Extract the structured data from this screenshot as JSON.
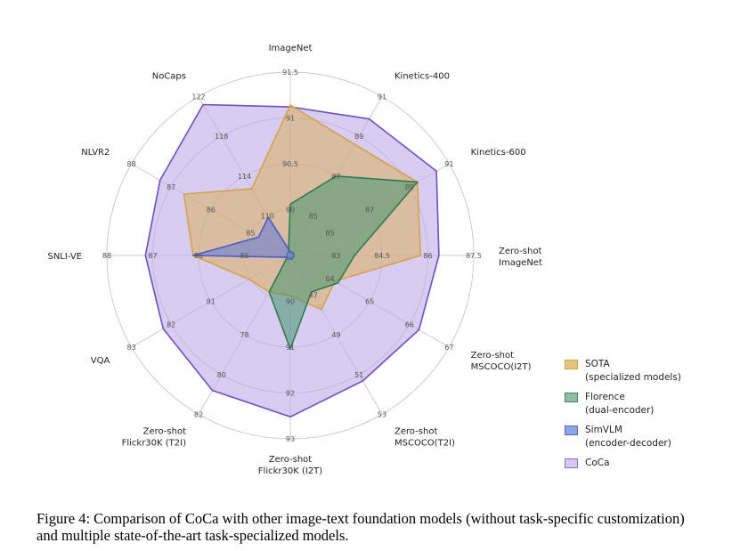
{
  "chart_data": {
    "type": "radar",
    "axes": [
      {
        "label": "ImageNet",
        "ticks": [
          "90",
          "90.5",
          "91",
          "91.5"
        ]
      },
      {
        "label": "Kinetics-400",
        "ticks": [
          "85",
          "87",
          "89",
          "91"
        ]
      },
      {
        "label": "Kinetics-600",
        "ticks": [
          "85",
          "87",
          "89",
          "91"
        ]
      },
      {
        "label": "Zero-shot ImageNet",
        "ticks": [
          "83",
          "84.5",
          "86",
          "87.5"
        ]
      },
      {
        "label": "Zero-shot MSCOCO(I2T)",
        "ticks": [
          "64",
          "65",
          "66",
          "67"
        ]
      },
      {
        "label": "Zero-shot MSCOCO(T2I)",
        "ticks": [
          "47",
          "49",
          "51",
          "53"
        ]
      },
      {
        "label": "Zero-shot Flickr30K (I2T)",
        "ticks": [
          "90",
          "91",
          "92",
          "93"
        ]
      },
      {
        "label": "Zero-shot Flickr30K (T2I)",
        "ticks": [
          "78",
          "80",
          "82"
        ]
      },
      {
        "label": "VQA",
        "ticks": [
          "81",
          "82",
          "83"
        ]
      },
      {
        "label": "SNLI-VE",
        "ticks": [
          "85",
          "86",
          "87",
          "88"
        ]
      },
      {
        "label": "NLVR2",
        "ticks": [
          "85",
          "86",
          "87",
          "88"
        ]
      },
      {
        "label": "NoCaps",
        "ticks": [
          "110",
          "114",
          "118",
          "122"
        ]
      }
    ],
    "series": [
      {
        "name": "SOTA (specialized models)",
        "values": [
          0.82,
          0.7,
          0.8,
          0.71,
          0.28,
          0.34,
          0.22,
          0.23,
          0.26,
          0.53,
          0.67,
          0.42
        ]
      },
      {
        "name": "Florence (dual-encoder)",
        "values": [
          0.28,
          0.5,
          0.8,
          0.35,
          0.3,
          0.23,
          0.51,
          0.23,
          0.02,
          0.02,
          0.02,
          0.02
        ]
      },
      {
        "name": "SimVLM (encoder-decoder)",
        "values": [
          0.02,
          0.02,
          0.02,
          0.02,
          0.02,
          0.02,
          0.02,
          0.02,
          0.02,
          0.53,
          0.2,
          0.24
        ]
      },
      {
        "name": "CoCa",
        "values": [
          0.81,
          0.86,
          0.92,
          0.81,
          0.81,
          0.79,
          0.88,
          0.85,
          0.8,
          0.79,
          0.82,
          0.95
        ]
      }
    ],
    "legend_position": "right"
  },
  "legend": [
    {
      "label": "SOTA\n(specialized models)",
      "color": "#E4C480",
      "stroke": "#D4A24A"
    },
    {
      "label": "Florence\n(dual-encoder)",
      "color": "#8FBFA3",
      "stroke": "#3E8A5E"
    },
    {
      "label": "SimVLM\n(encoder-decoder)",
      "color": "#8EA3E0",
      "stroke": "#5566CC"
    },
    {
      "label": "CoCa",
      "color": "#D6C9EF",
      "stroke": "#8B70CC"
    }
  ],
  "colors": {
    "sota_fill": "rgba(221,174,96,0.55)",
    "sota_stroke": "#D4A24A",
    "florence_fill": "rgba(70,150,110,0.55)",
    "florence_stroke": "#2F7A52",
    "simvlm_fill": "rgba(95,120,220,0.55)",
    "simvlm_stroke": "#4A5BC9",
    "coca_fill": "rgba(190,170,230,0.60)",
    "coca_stroke": "#6E4FC2",
    "grid": "#cccccc"
  },
  "caption": "Figure 4: Comparison of CoCa with other image-text foundation models (without task-specific customization) and multiple state-of-the-art task-specialized models."
}
